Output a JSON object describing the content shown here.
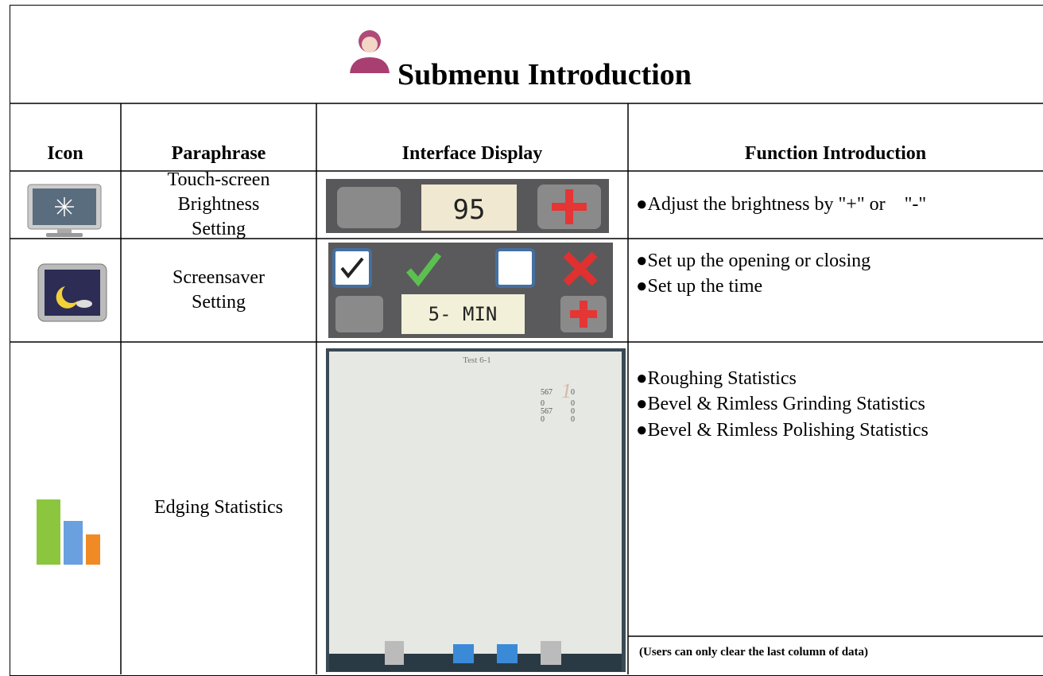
{
  "header": {
    "title": "Submenu Introduction"
  },
  "table": {
    "columns": [
      "Icon",
      "Paraphrase",
      "Interface Display",
      "Function Introduction"
    ],
    "rows": [
      {
        "paraphrase": "Touch-screen\nBrightness\nSetting",
        "display": {
          "value": "95"
        },
        "functions": [
          "●Adjust the brightness by \"+\" or    \"-\""
        ]
      },
      {
        "paraphrase": "Screensaver\nSetting",
        "display": {
          "time": "5- MIN"
        },
        "functions": [
          "●Set up the opening or closing",
          "●Set up the time"
        ]
      },
      {
        "paraphrase": "Edging Statistics",
        "display": {
          "screen_title": "Test 6-1",
          "page": "1",
          "stats": [
            [
              "567",
              "0"
            ],
            [
              "0",
              "0"
            ],
            [
              "567",
              "0"
            ],
            [
              "0",
              "0"
            ]
          ]
        },
        "functions": [
          "●Roughing Statistics",
          "●Bevel & Rimless Grinding Statistics",
          "●Bevel & Rimless Polishing Statistics"
        ],
        "note": "(Users can only clear the last column of data)"
      }
    ]
  }
}
